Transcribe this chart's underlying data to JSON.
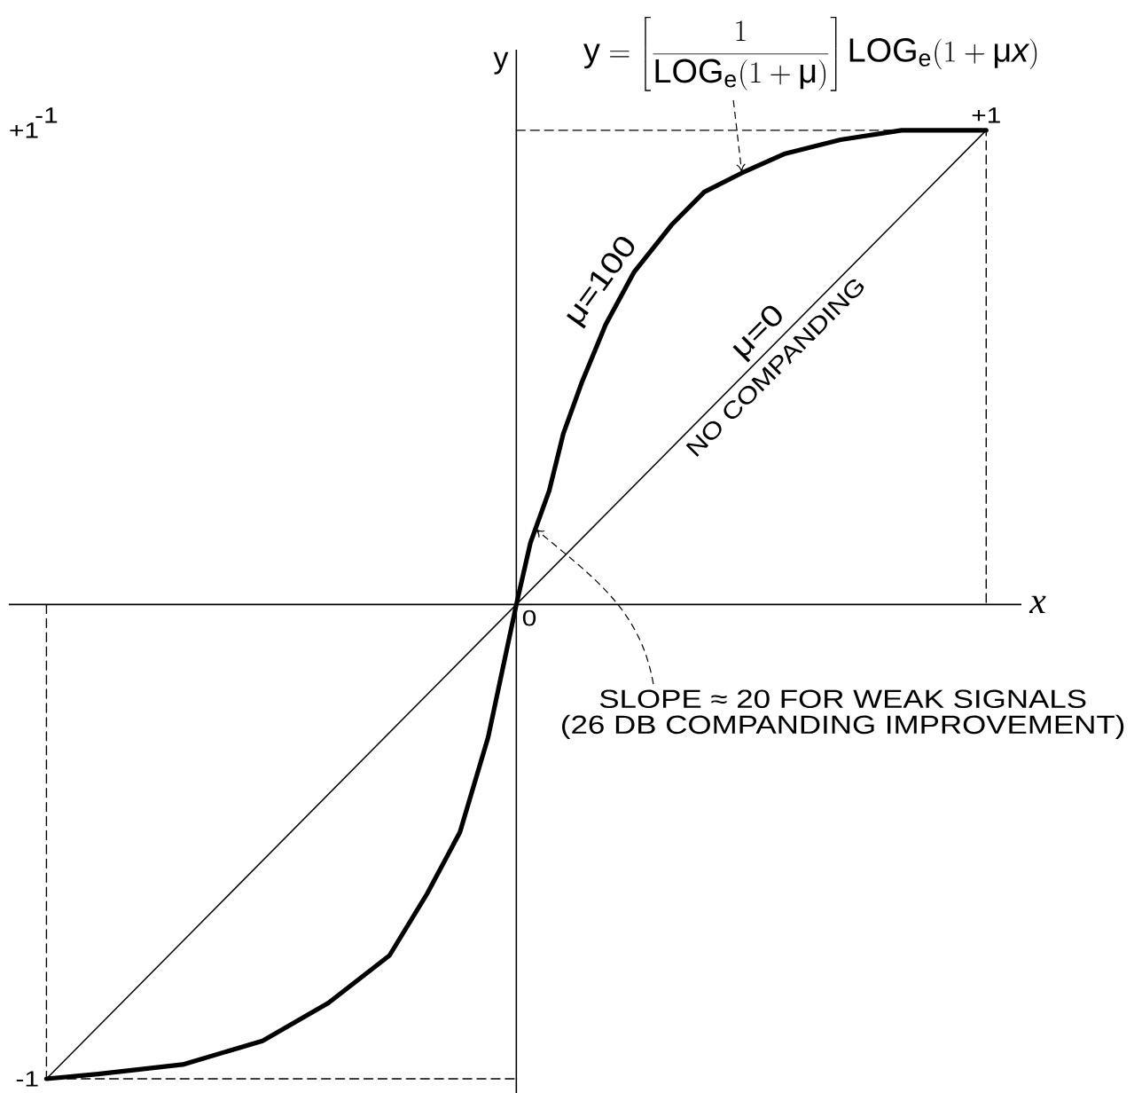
{
  "chart_data": {
    "type": "line",
    "xlabel": "x",
    "ylabel": "y",
    "xlim": [
      -1.08,
      1.075
    ],
    "ylim": [
      -1.03,
      1.17
    ],
    "xticks": [
      -1,
      {
        "value": 1,
        "label": "+1"
      }
    ],
    "yticks": [
      -1,
      {
        "value": 1,
        "label": "+1"
      }
    ],
    "series": [
      {
        "name": "μ=100",
        "color": "#000000",
        "x": [
          -1,
          -0.89,
          -0.71,
          -0.54,
          -0.4,
          -0.27,
          -0.19,
          -0.12,
          -0.06,
          -0.03,
          0,
          0.03,
          0.07,
          0.1,
          0.14,
          0.19,
          0.25,
          0.33,
          0.4,
          0.48,
          0.57,
          0.69,
          0.82,
          1
        ],
        "values": [
          -1,
          -0.99,
          -0.97,
          -0.92,
          -0.84,
          -0.74,
          -0.61,
          -0.48,
          -0.28,
          -0.14,
          0,
          0.13,
          0.24,
          0.36,
          0.47,
          0.59,
          0.7,
          0.8,
          0.87,
          0.91,
          0.95,
          0.98,
          1,
          1
        ]
      },
      {
        "name": "μ=0",
        "color": "#000000",
        "x": [
          -1,
          1
        ],
        "values": [
          -1,
          1
        ]
      },
      {
        "color": "#000000",
        "x": [
          0,
          1,
          1
        ],
        "values": [
          1,
          1,
          0
        ],
        "line_style": "dashed"
      },
      {
        "color": "#000000",
        "x": [
          -1,
          -1,
          0
        ],
        "values": [
          0,
          -1,
          -1
        ],
        "line_style": "dashed"
      }
    ],
    "annotations": [
      {
        "text": "\\mathrm{y}=\\left[\\frac{1}{\\mathrm{LOG}_{\\mathrm{e}}(1+\\mathrm{μ})}\\right]\\mathrm{LOG}_{\\mathrm{e}}(1+\\mathrm{μ}\\mathit{x})",
        "x": 0.48,
        "y": 0.91
      },
      "NO COMPANDING",
      {
        "text": "SLOPE ≈ 20 FOR WEAK SIGNALS",
        "x": 0.04,
        "y": 0.16
      },
      "(26 DB COMPANDING IMPROVEMENT)",
      "0"
    ]
  }
}
